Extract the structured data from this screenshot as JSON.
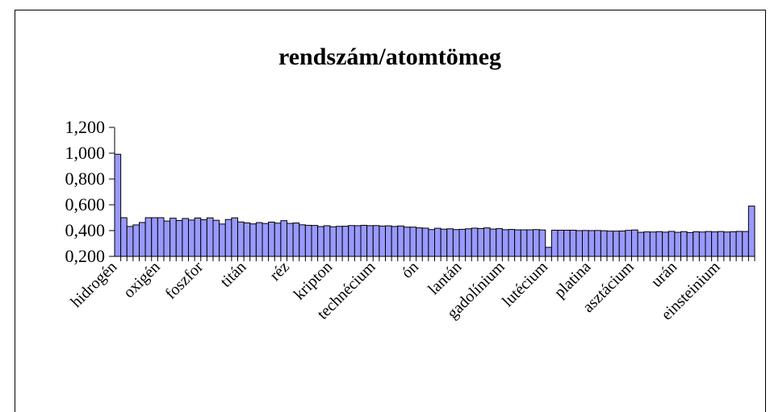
{
  "chart_data": {
    "type": "bar",
    "title": "rendszám/atomtömeg",
    "categories": [
      "hidrogén",
      null,
      null,
      null,
      null,
      null,
      null,
      "oxigén",
      null,
      null,
      null,
      null,
      null,
      null,
      "foszfor",
      null,
      null,
      null,
      null,
      null,
      null,
      "titán",
      null,
      null,
      null,
      null,
      null,
      null,
      "réz",
      null,
      null,
      null,
      null,
      null,
      null,
      "kripton",
      null,
      null,
      null,
      null,
      null,
      null,
      "technécium",
      null,
      null,
      null,
      null,
      null,
      null,
      "ón",
      null,
      null,
      null,
      null,
      null,
      null,
      "lantán",
      null,
      null,
      null,
      null,
      null,
      null,
      "gadolínium",
      null,
      null,
      null,
      null,
      null,
      null,
      "lutécium",
      null,
      null,
      null,
      null,
      null,
      null,
      "platina",
      null,
      null,
      null,
      null,
      null,
      null,
      "asztácium",
      null,
      null,
      null,
      null,
      null,
      null,
      "urán",
      null,
      null,
      null,
      null,
      null,
      null,
      "einsteinium",
      null,
      null,
      null,
      null,
      null
    ],
    "values": [
      0.992,
      0.5,
      0.432,
      0.444,
      0.463,
      0.5,
      0.5,
      0.5,
      0.474,
      0.496,
      0.478,
      0.494,
      0.482,
      0.498,
      0.484,
      0.499,
      0.48,
      0.451,
      0.486,
      0.499,
      0.467,
      0.46,
      0.452,
      0.462,
      0.455,
      0.466,
      0.458,
      0.477,
      0.456,
      0.459,
      0.445,
      0.441,
      0.44,
      0.431,
      0.438,
      0.43,
      0.433,
      0.434,
      0.439,
      0.438,
      0.441,
      0.438,
      0.439,
      0.435,
      0.437,
      0.432,
      0.436,
      0.427,
      0.427,
      0.421,
      0.419,
      0.408,
      0.418,
      0.411,
      0.414,
      0.408,
      0.41,
      0.414,
      0.419,
      0.416,
      0.421,
      0.412,
      0.415,
      0.407,
      0.409,
      0.406,
      0.406,
      0.406,
      0.408,
      0.405,
      0.27,
      0.403,
      0.403,
      0.403,
      0.403,
      0.4,
      0.401,
      0.4,
      0.401,
      0.399,
      0.396,
      0.396,
      0.397,
      0.402,
      0.405,
      0.387,
      0.39,
      0.389,
      0.392,
      0.388,
      0.394,
      0.387,
      0.392,
      0.385,
      0.391,
      0.389,
      0.393,
      0.39,
      0.393,
      0.389,
      0.391,
      0.394,
      0.393,
      0.59
    ],
    "color": "#9999ff",
    "ylim": [
      0.2,
      1.2
    ],
    "yticks": [
      {
        "value": 0.2,
        "label": "0,200"
      },
      {
        "value": 0.4,
        "label": "0,400"
      },
      {
        "value": 0.6,
        "label": "0,600"
      },
      {
        "value": 0.8,
        "label": "0,800"
      },
      {
        "value": 1.0,
        "label": "1,000"
      },
      {
        "value": 1.2,
        "label": "1,200"
      }
    ]
  }
}
